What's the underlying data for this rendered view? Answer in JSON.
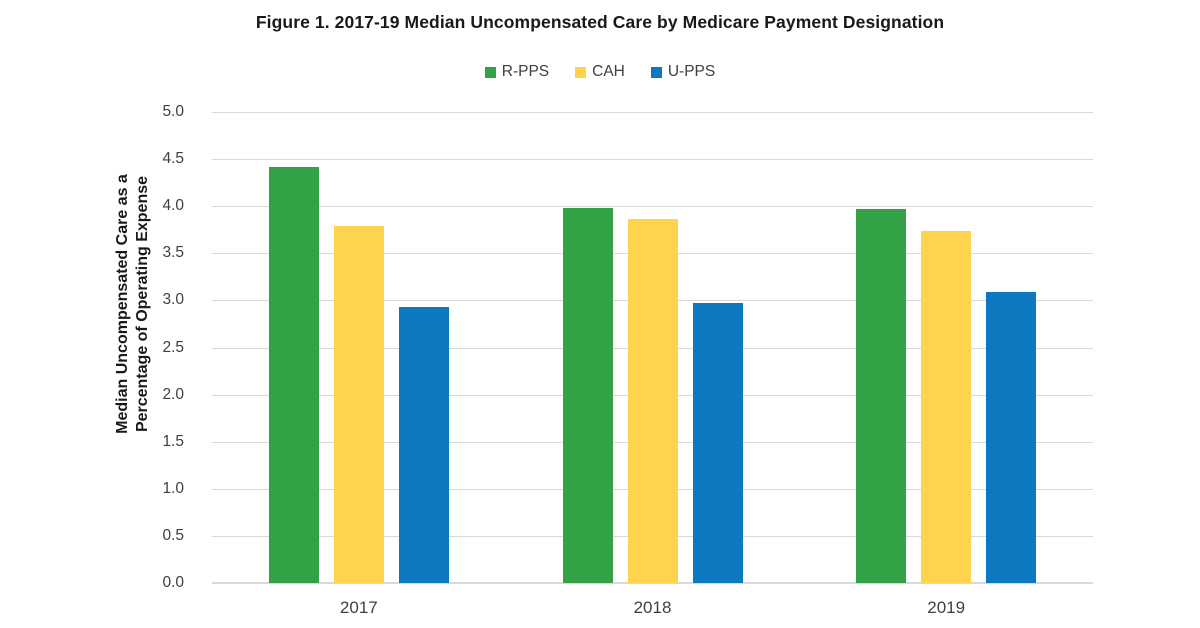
{
  "figure": {
    "title": "Figure 1. 2017-19 Median Uncompensated Care by Medicare Payment Designation"
  },
  "chart_data": {
    "type": "bar",
    "title": "Figure 1. 2017-19 Median Uncompensated Care by Medicare Payment Designation",
    "categories": [
      "2017",
      "2018",
      "2019"
    ],
    "series": [
      {
        "name": "R-PPS",
        "color": "#33A247",
        "values": [
          4.42,
          3.98,
          3.97
        ]
      },
      {
        "name": "CAH",
        "color": "#FED44F",
        "values": [
          3.79,
          3.86,
          3.74
        ]
      },
      {
        "name": "U-PPS",
        "color": "#0C78BF",
        "values": [
          2.93,
          2.97,
          3.09
        ]
      }
    ],
    "xlabel": "",
    "ylabel_lines": [
      "Median Uncompensated Care as a",
      "Percentage of Operating Expense"
    ],
    "ylim": [
      0.0,
      5.0
    ],
    "ytick_step": 0.5,
    "ytick_labels": [
      "5.0",
      "4.5",
      "4.0",
      "3.5",
      "3.0",
      "2.5",
      "2.0",
      "1.5",
      "1.0",
      "0.5",
      "0.0"
    ],
    "grid": true,
    "legend_position": "top-center",
    "gridline_color": "#D9D9D9",
    "text_color": "#3F3F3F"
  }
}
